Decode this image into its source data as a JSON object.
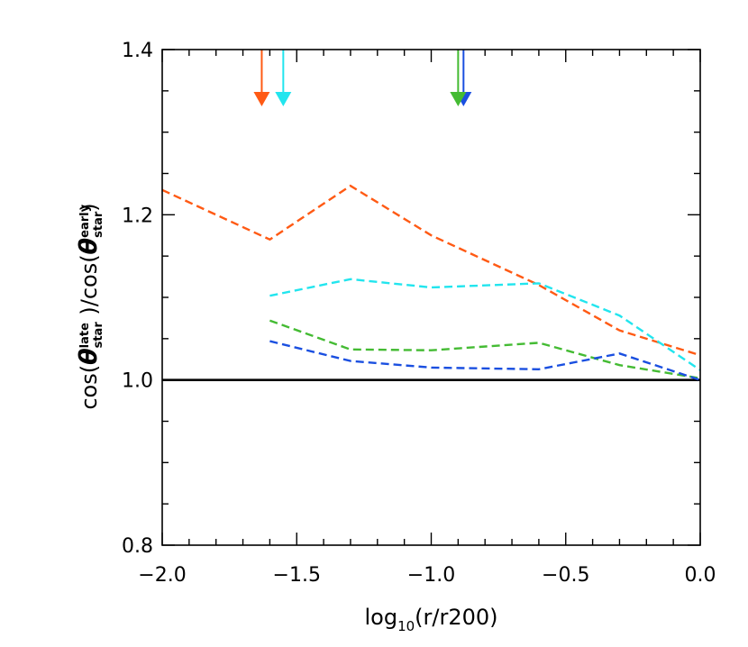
{
  "chart_data": {
    "type": "line",
    "title": "",
    "xlabel": {
      "main": "log",
      "sub": "10",
      "rest": "(r/r200)"
    },
    "ylabel": {
      "prefix": "cos(",
      "theta": "θ",
      "num_sub": "star",
      "num_sup": "late",
      "mid": " )/cos(",
      "den_sub": "star",
      "den_sup": "early",
      "suffix": ")"
    },
    "xlim": [
      -2.0,
      0.0
    ],
    "ylim": [
      0.8,
      1.4
    ],
    "x_ticks": [
      -2.0,
      -1.5,
      -1.0,
      -0.5,
      0.0
    ],
    "x_tick_labels": [
      "−2.0",
      "−1.5",
      "−1.0",
      "−0.5",
      "0.0"
    ],
    "y_ticks": [
      0.8,
      1.0,
      1.2,
      1.4
    ],
    "y_tick_labels": [
      "0.8",
      "1.0",
      "1.2",
      "1.4"
    ],
    "x_minor_step": 0.1,
    "y_minor_step": 0.05,
    "reference_line": {
      "y": 1.0,
      "color": "#000000"
    },
    "series": [
      {
        "color": "#ff5a14",
        "style": "dashed",
        "points": [
          [
            -2.0,
            1.23
          ],
          [
            -1.6,
            1.17
          ],
          [
            -1.3,
            1.235
          ],
          [
            -1.0,
            1.175
          ],
          [
            -0.6,
            1.115
          ],
          [
            -0.3,
            1.06
          ],
          [
            0.0,
            1.03
          ]
        ]
      },
      {
        "color": "#22e5ee",
        "style": "dashed",
        "points": [
          [
            -1.6,
            1.102
          ],
          [
            -1.3,
            1.122
          ],
          [
            -1.0,
            1.112
          ],
          [
            -0.6,
            1.117
          ],
          [
            -0.3,
            1.078
          ],
          [
            0.0,
            1.012
          ]
        ]
      },
      {
        "color": "#44bb33",
        "style": "dashed",
        "points": [
          [
            -1.6,
            1.072
          ],
          [
            -1.3,
            1.037
          ],
          [
            -1.0,
            1.036
          ],
          [
            -0.6,
            1.045
          ],
          [
            -0.3,
            1.018
          ],
          [
            0.0,
            1.002
          ]
        ]
      },
      {
        "color": "#1a4fe0",
        "style": "dashed",
        "points": [
          [
            -1.6,
            1.047
          ],
          [
            -1.3,
            1.023
          ],
          [
            -1.0,
            1.015
          ],
          [
            -0.6,
            1.013
          ],
          [
            -0.3,
            1.032
          ],
          [
            0.0,
            1.0
          ]
        ]
      }
    ],
    "markers": [
      {
        "x": -1.63,
        "color": "#ff5a14"
      },
      {
        "x": -1.55,
        "color": "#22e5ee"
      },
      {
        "x": -0.88,
        "color": "#1a4fe0"
      },
      {
        "x": -0.9,
        "color": "#44bb33"
      }
    ]
  }
}
